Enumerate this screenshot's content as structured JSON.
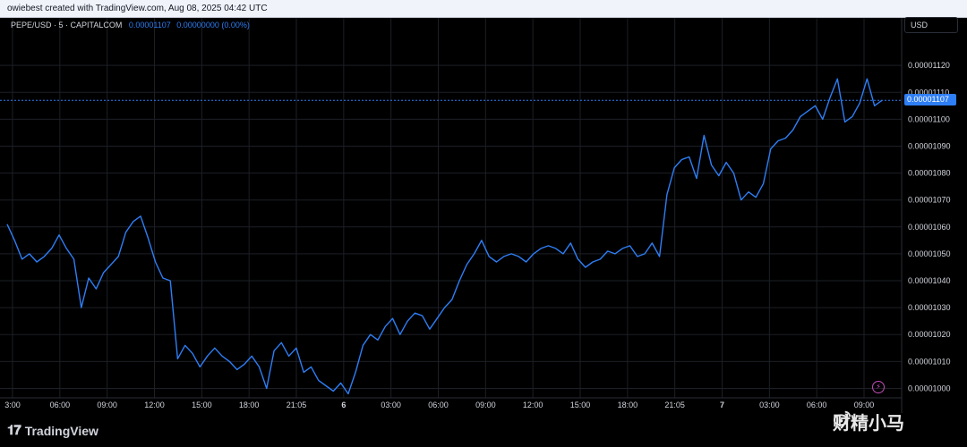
{
  "header": {
    "created_by": "owiebest created with TradingView.com, Aug 08, 2025 04:42 UTC"
  },
  "legend": {
    "symbol": "PEPE/USD · 5 · CAPITALCOM",
    "last_value": "0.00001107",
    "change": "0.00000000 (0.00%)"
  },
  "price_scale": {
    "currency": "USD",
    "last_price_label": "0.00001107"
  },
  "footer": {
    "brand": "TradingView",
    "watermark": "财精小马"
  },
  "colors": {
    "line": "#2e7ef5",
    "background": "#000000",
    "grid": "#1c1f26",
    "text": "#d1d4dc"
  },
  "chart_data": {
    "type": "line",
    "title": "PEPE/USD · 5 · CAPITALCOM",
    "xlabel": "",
    "ylabel": "",
    "ylim": [
      9.965e-06,
      1.135e-05
    ],
    "grid": true,
    "x_ticks": [
      "3:00",
      "06:00",
      "09:00",
      "12:00",
      "15:00",
      "18:00",
      "21:05",
      "6",
      "03:00",
      "06:00",
      "09:00",
      "12:00",
      "15:00",
      "18:00",
      "21:05",
      "7",
      "03:00",
      "06:00",
      "09:00"
    ],
    "y_ticks": [
      "0.00001000",
      "0.00001010",
      "0.00001020",
      "0.00001030",
      "0.00001040",
      "0.00001050",
      "0.00001060",
      "0.00001070",
      "0.00001080",
      "0.00001090",
      "0.00001100",
      "0.00001110",
      "0.00001120"
    ],
    "y_tick_values": [
      1e-05,
      1.01e-05,
      1.02e-05,
      1.03e-05,
      1.04e-05,
      1.05e-05,
      1.06e-05,
      1.07e-05,
      1.08e-05,
      1.09e-05,
      1.1e-05,
      1.11e-05,
      1.12e-05
    ],
    "last_value": 1.107e-05,
    "series": [
      {
        "values": [
          1.061e-05,
          1.055e-05,
          1.048e-05,
          1.05e-05,
          1.047e-05,
          1.049e-05,
          1.052e-05,
          1.057e-05,
          1.052e-05,
          1.048e-05,
          1.03e-05,
          1.041e-05,
          1.037e-05,
          1.043e-05,
          1.046e-05,
          1.049e-05,
          1.058e-05,
          1.062e-05,
          1.064e-05,
          1.056e-05,
          1.047e-05,
          1.041e-05,
          1.04e-05,
          1.011e-05,
          1.016e-05,
          1.013e-05,
          1.008e-05,
          1.012e-05,
          1.015e-05,
          1.012e-05,
          1.01e-05,
          1.007e-05,
          1.009e-05,
          1.012e-05,
          1.008e-05,
          1e-05,
          1.014e-05,
          1.017e-05,
          1.012e-05,
          1.015e-05,
          1.006e-05,
          1.008e-05,
          1.003e-05,
          1.001e-05,
          9.99e-06,
          1.002e-05,
          9.98e-06,
          1.006e-05,
          1.016e-05,
          1.02e-05,
          1.018e-05,
          1.023e-05,
          1.026e-05,
          1.02e-05,
          1.025e-05,
          1.028e-05,
          1.027e-05,
          1.022e-05,
          1.026e-05,
          1.03e-05,
          1.033e-05,
          1.04e-05,
          1.046e-05,
          1.05e-05,
          1.055e-05,
          1.049e-05,
          1.047e-05,
          1.049e-05,
          1.05e-05,
          1.049e-05,
          1.047e-05,
          1.05e-05,
          1.052e-05,
          1.053e-05,
          1.052e-05,
          1.05e-05,
          1.054e-05,
          1.048e-05,
          1.045e-05,
          1.047e-05,
          1.048e-05,
          1.051e-05,
          1.05e-05,
          1.052e-05,
          1.053e-05,
          1.049e-05,
          1.05e-05,
          1.054e-05,
          1.049e-05,
          1.072e-05,
          1.082e-05,
          1.085e-05,
          1.086e-05,
          1.078e-05,
          1.094e-05,
          1.083e-05,
          1.079e-05,
          1.084e-05,
          1.08e-05,
          1.07e-05,
          1.073e-05,
          1.071e-05,
          1.076e-05,
          1.089e-05,
          1.092e-05,
          1.093e-05,
          1.096e-05,
          1.101e-05,
          1.103e-05,
          1.105e-05,
          1.1e-05,
          1.108e-05,
          1.115e-05,
          1.099e-05,
          1.101e-05,
          1.106e-05,
          1.115e-05,
          1.105e-05,
          1.107e-05
        ]
      }
    ]
  }
}
